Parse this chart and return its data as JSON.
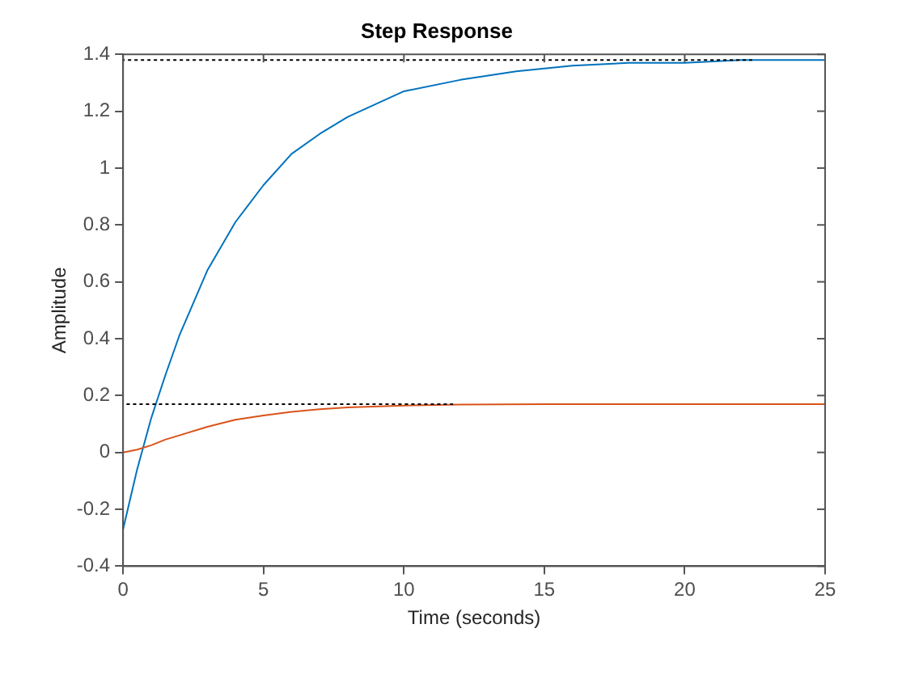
{
  "chart_data": {
    "type": "line",
    "title": "Step Response",
    "xlabel": "Time (seconds)",
    "ylabel": "Amplitude",
    "xlim": [
      0,
      25
    ],
    "xticks": [
      0,
      5,
      10,
      15,
      20,
      25
    ],
    "ylim": [
      -0.4,
      1.4
    ],
    "yticks": [
      -0.4,
      -0.2,
      0,
      0.2,
      0.4,
      0.6,
      0.8,
      1,
      1.2,
      1.4
    ],
    "grid": false,
    "legend": false,
    "series": [
      {
        "color": "#0072bd",
        "x": [
          0,
          0.5,
          1,
          1.5,
          2,
          3,
          4,
          5,
          6,
          7,
          8,
          10,
          12,
          14,
          16,
          18,
          20,
          22,
          25
        ],
        "values": [
          -0.27,
          -0.06,
          0.12,
          0.27,
          0.41,
          0.64,
          0.81,
          0.94,
          1.05,
          1.12,
          1.18,
          1.27,
          1.31,
          1.34,
          1.36,
          1.37,
          1.37,
          1.38,
          1.38
        ]
      },
      {
        "color": "#d95319",
        "x": [
          0,
          0.5,
          1,
          1.5,
          2,
          3,
          4,
          5,
          6,
          7,
          8,
          10,
          12,
          15,
          20,
          25
        ],
        "values": [
          0,
          0.01,
          0.025,
          0.045,
          0.06,
          0.09,
          0.115,
          0.13,
          0.143,
          0.152,
          0.158,
          0.165,
          0.168,
          0.17,
          0.17,
          0.17
        ]
      },
      {
        "color": "#000000",
        "line_style": "dotted",
        "x": [
          0,
          22.4
        ],
        "values": [
          1.38,
          1.38
        ]
      },
      {
        "color": "#000000",
        "line_style": "dotted",
        "x": [
          0,
          11.75
        ],
        "values": [
          0.17,
          0.17
        ]
      }
    ]
  }
}
